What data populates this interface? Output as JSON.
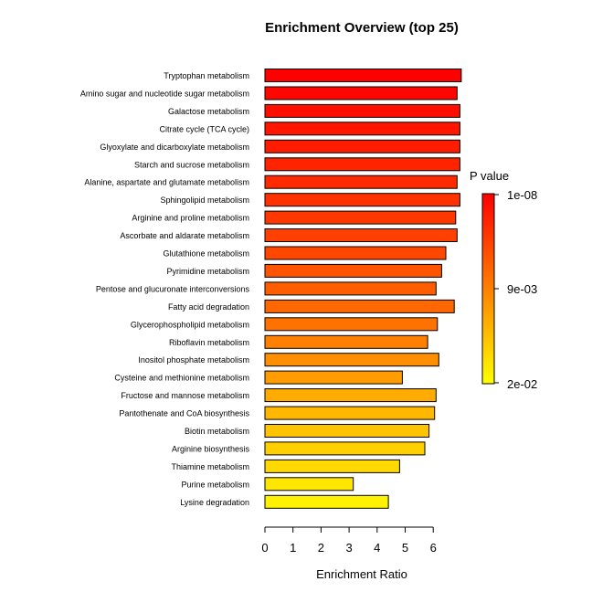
{
  "chart_data": {
    "type": "bar",
    "orientation": "horizontal",
    "title": "Enrichment Overview (top 25)",
    "xlabel": "Enrichment Ratio",
    "ylabel": "",
    "xlim": [
      0,
      7
    ],
    "xticks": [
      "0",
      "1",
      "2",
      "3",
      "4",
      "5",
      "6"
    ],
    "categories": [
      "Tryptophan metabolism",
      "Amino sugar and nucleotide sugar metabolism",
      "Galactose metabolism",
      "Citrate cycle (TCA cycle)",
      "Glyoxylate and dicarboxylate metabolism",
      "Starch and sucrose metabolism",
      "Alanine, aspartate and glutamate metabolism",
      "Sphingolipid metabolism",
      "Arginine and proline metabolism",
      "Ascorbate and aldarate metabolism",
      "Glutathione metabolism",
      "Pyrimidine metabolism",
      "Pentose and glucuronate interconversions",
      "Fatty acid degradation",
      "Glycerophospholipid metabolism",
      "Riboflavin metabolism",
      "Inositol phosphate metabolism",
      "Cysteine and methionine metabolism",
      "Fructose and mannose metabolism",
      "Pantothenate and CoA biosynthesis",
      "Biotin metabolism",
      "Arginine biosynthesis",
      "Thiamine metabolism",
      "Purine metabolism",
      "Lysine degradation"
    ],
    "values": [
      7.0,
      6.85,
      6.95,
      6.95,
      6.95,
      6.95,
      6.85,
      6.95,
      6.8,
      6.85,
      6.45,
      6.3,
      6.1,
      6.75,
      6.15,
      5.8,
      6.2,
      4.9,
      6.1,
      6.05,
      5.85,
      5.7,
      4.8,
      3.15,
      4.4
    ],
    "colors": [
      "#ff0000",
      "#ff0700",
      "#ff0e00",
      "#ff1500",
      "#ff1c00",
      "#ff2300",
      "#ff2a00",
      "#ff3100",
      "#ff3800",
      "#ff4000",
      "#ff4700",
      "#ff5400",
      "#ff5e00",
      "#ff6800",
      "#ff7200",
      "#ff8000",
      "#ff8f00",
      "#ff9d00",
      "#ffab00",
      "#ffb700",
      "#ffc400",
      "#ffcf00",
      "#ffd900",
      "#ffe600",
      "#fff200"
    ],
    "legend": {
      "title": "P value",
      "labels": [
        "1e-08",
        "9e-03",
        "2e-02"
      ],
      "gradient": [
        "#ff0000",
        "#ff8000",
        "#ffff00"
      ],
      "placement": "right"
    },
    "grid": false
  }
}
